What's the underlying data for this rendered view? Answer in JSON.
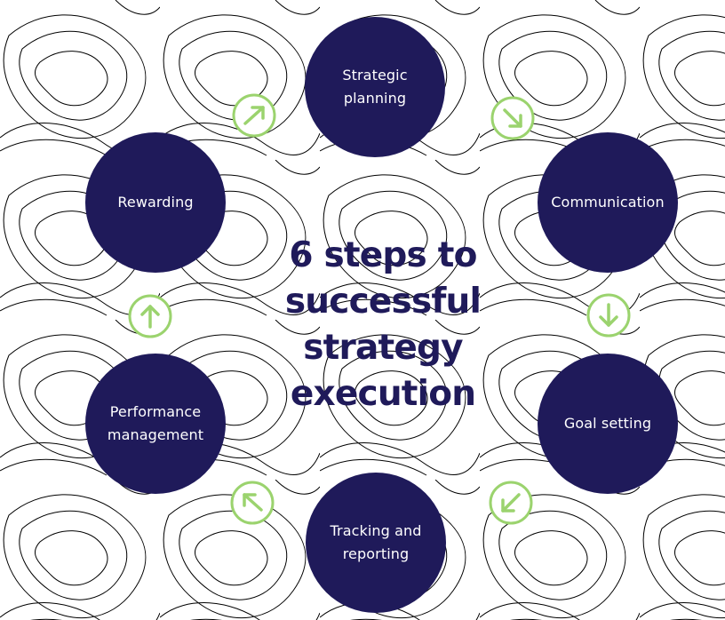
{
  "colors": {
    "background": "#ffffff",
    "circle_fill": "#1f1a5a",
    "circle_text": "#ffffff",
    "title": "#1f1a5a",
    "arrow": "#9bd36e",
    "topo_lines": "#ecedf2"
  },
  "title": {
    "lines": [
      "6 steps to",
      "successful",
      "strategy",
      "execution"
    ]
  },
  "steps": [
    {
      "label": "Strategic\nplanning"
    },
    {
      "label": "Communication"
    },
    {
      "label": "Goal setting"
    },
    {
      "label": "Tracking and\nreporting"
    },
    {
      "label": "Performance\nmanagement"
    },
    {
      "label": "Rewarding"
    }
  ],
  "arrows": [
    {
      "icon": "arrow-up-right-icon",
      "direction": "up-right"
    },
    {
      "icon": "arrow-down-right-icon",
      "direction": "down-right"
    },
    {
      "icon": "arrow-down-icon",
      "direction": "down"
    },
    {
      "icon": "arrow-down-left-icon",
      "direction": "down-left"
    },
    {
      "icon": "arrow-up-left-icon",
      "direction": "up-left"
    },
    {
      "icon": "arrow-up-icon",
      "direction": "up"
    }
  ]
}
